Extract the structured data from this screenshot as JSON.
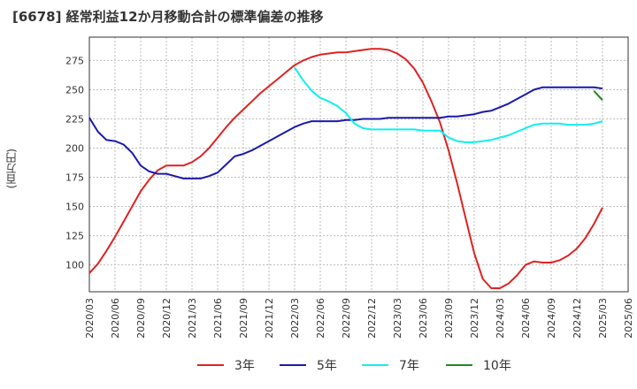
{
  "chart_data": {
    "type": "line",
    "title": "[6678]  経常利益12か月移動合計の標準偏差の推移",
    "ylabel": "(百万円)",
    "xlabel": "",
    "ylim": [
      77,
      295
    ],
    "y_ticks": [
      "100",
      "125",
      "150",
      "175",
      "200",
      "225",
      "250",
      "275"
    ],
    "x_ticks": [
      "2020/03",
      "2020/06",
      "2020/09",
      "2020/12",
      "2021/03",
      "2021/06",
      "2021/09",
      "2021/12",
      "2022/03",
      "2022/06",
      "2022/09",
      "2022/12",
      "2023/03",
      "2023/06",
      "2023/09",
      "2023/12",
      "2024/03",
      "2024/06",
      "2024/09",
      "2024/12",
      "2025/03",
      "2025/06"
    ],
    "grid": true,
    "legend_position": "bottom",
    "series": [
      {
        "name": "3年",
        "color": "#dd2222",
        "x": [
          "2020/03",
          "2020/04",
          "2020/05",
          "2020/06",
          "2020/07",
          "2020/08",
          "2020/09",
          "2020/10",
          "2020/11",
          "2020/12",
          "2021/01",
          "2021/02",
          "2021/03",
          "2021/04",
          "2021/05",
          "2021/06",
          "2021/07",
          "2021/08",
          "2021/09",
          "2021/10",
          "2021/11",
          "2021/12",
          "2022/01",
          "2022/02",
          "2022/03",
          "2022/04",
          "2022/05",
          "2022/06",
          "2022/07",
          "2022/08",
          "2022/09",
          "2022/10",
          "2022/11",
          "2022/12",
          "2023/01",
          "2023/02",
          "2023/03",
          "2023/04",
          "2023/05",
          "2023/06",
          "2023/07",
          "2023/08",
          "2023/09",
          "2023/10",
          "2023/11",
          "2023/12",
          "2024/01",
          "2024/02",
          "2024/03",
          "2024/04",
          "2024/05",
          "2024/06",
          "2024/07",
          "2024/08",
          "2024/09",
          "2024/10",
          "2024/11",
          "2024/12",
          "2025/01",
          "2025/02",
          "2025/03"
        ],
        "values": [
          93,
          101,
          112,
          124,
          137,
          150,
          163,
          173,
          181,
          185,
          185,
          185,
          188,
          193,
          200,
          209,
          218,
          226,
          233,
          240,
          247,
          253,
          259,
          265,
          271,
          275,
          278,
          280,
          281,
          282,
          282,
          283,
          284,
          285,
          285,
          284,
          281,
          276,
          268,
          256,
          240,
          222,
          198,
          170,
          140,
          110,
          88,
          80,
          80,
          84,
          91,
          100,
          103,
          102,
          102,
          104,
          108,
          114,
          123,
          135,
          149
        ]
      },
      {
        "name": "5年",
        "color": "#1a1aaa",
        "x": [
          "2020/03",
          "2020/04",
          "2020/05",
          "2020/06",
          "2020/07",
          "2020/08",
          "2020/09",
          "2020/10",
          "2020/11",
          "2020/12",
          "2021/01",
          "2021/02",
          "2021/03",
          "2021/04",
          "2021/05",
          "2021/06",
          "2021/07",
          "2021/08",
          "2021/09",
          "2021/10",
          "2021/11",
          "2021/12",
          "2022/01",
          "2022/02",
          "2022/03",
          "2022/04",
          "2022/05",
          "2022/06",
          "2022/07",
          "2022/08",
          "2022/09",
          "2022/10",
          "2022/11",
          "2022/12",
          "2023/01",
          "2023/02",
          "2023/03",
          "2023/04",
          "2023/05",
          "2023/06",
          "2023/07",
          "2023/08",
          "2023/09",
          "2023/10",
          "2023/11",
          "2023/12",
          "2024/01",
          "2024/02",
          "2024/03",
          "2024/04",
          "2024/05",
          "2024/06",
          "2024/07",
          "2024/08",
          "2024/09",
          "2024/10",
          "2024/11",
          "2024/12",
          "2025/01",
          "2025/02",
          "2025/03"
        ],
        "values": [
          226,
          214,
          207,
          206,
          203,
          196,
          185,
          180,
          178,
          178,
          176,
          174,
          174,
          174,
          176,
          179,
          186,
          193,
          195,
          198,
          202,
          206,
          210,
          214,
          218,
          221,
          223,
          223,
          223,
          223,
          224,
          224,
          225,
          225,
          225,
          226,
          226,
          226,
          226,
          226,
          226,
          226,
          227,
          227,
          228,
          229,
          231,
          232,
          235,
          238,
          242,
          246,
          250,
          252,
          252,
          252,
          252,
          252,
          252,
          252,
          251
        ]
      },
      {
        "name": "7年",
        "color": "#11eeee",
        "x": [
          "2022/03",
          "2022/04",
          "2022/05",
          "2022/06",
          "2022/07",
          "2022/08",
          "2022/09",
          "2022/10",
          "2022/11",
          "2022/12",
          "2023/01",
          "2023/02",
          "2023/03",
          "2023/04",
          "2023/05",
          "2023/06",
          "2023/07",
          "2023/08",
          "2023/09",
          "2023/10",
          "2023/11",
          "2023/12",
          "2024/01",
          "2024/02",
          "2024/03",
          "2024/04",
          "2024/05",
          "2024/06",
          "2024/07",
          "2024/08",
          "2024/09",
          "2024/10",
          "2024/11",
          "2024/12",
          "2025/01",
          "2025/02",
          "2025/03"
        ],
        "values": [
          269,
          258,
          249,
          243,
          240,
          236,
          230,
          221,
          217,
          216,
          216,
          216,
          216,
          216,
          216,
          215,
          215,
          215,
          209,
          206,
          205,
          205,
          206,
          207,
          209,
          211,
          214,
          217,
          220,
          221,
          221,
          221,
          220,
          220,
          220,
          221,
          223
        ]
      },
      {
        "name": "10年",
        "color": "#228822",
        "x": [
          "2025/02",
          "2025/03"
        ],
        "values": [
          249,
          241
        ]
      }
    ]
  }
}
